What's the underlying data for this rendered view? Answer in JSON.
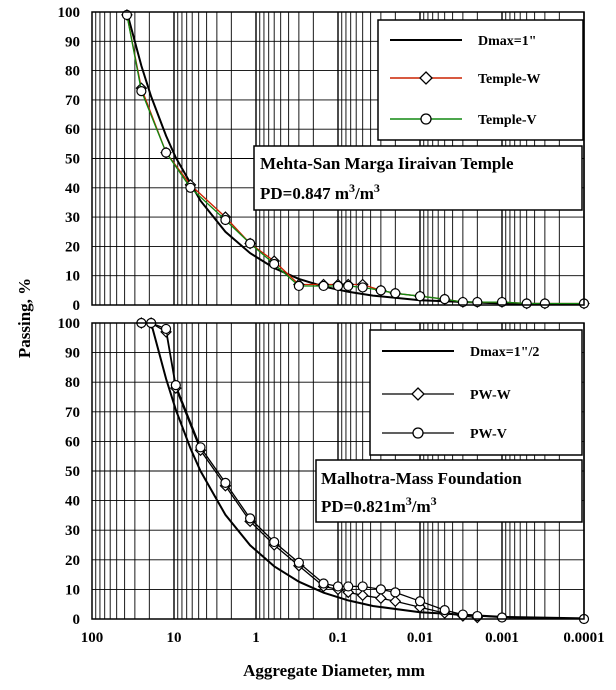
{
  "chart_data": [
    {
      "type": "line",
      "xscale": "log-reversed",
      "xlim": [
        100,
        0.0001
      ],
      "ylim": [
        0,
        100
      ],
      "grid": true,
      "yticks": [
        0,
        10,
        20,
        30,
        40,
        50,
        60,
        70,
        80,
        90,
        100
      ],
      "legend_position": "top-right",
      "legend": [
        "Dmax=1\"",
        "Temple-W",
        "Temple-V"
      ],
      "annotation": {
        "line1": "Mehta-San Marga Iiraivan Temple",
        "line2_prefix": "PD=0.847 m",
        "line2_sup1": "3",
        "line2_mid": "/m",
        "line2_sup2": "3"
      },
      "series": [
        {
          "name": "Dmax=1\"",
          "color": "#000000",
          "marker": "none",
          "x": [
            37.5,
            25,
            19,
            12.5,
            9.5,
            4.75,
            2.36,
            1.18,
            0.6,
            0.3,
            0.15,
            0.075,
            0.0375,
            0.01,
            0.001,
            0.0001
          ],
          "y": [
            100,
            81.6,
            71.2,
            57.7,
            50.3,
            35.6,
            25,
            17.7,
            12.6,
            8.9,
            6.3,
            4.5,
            3.2,
            1.6,
            0.5,
            0.2
          ]
        },
        {
          "name": "Temple-W",
          "color": "#cc2200",
          "marker": "diamond",
          "x": [
            37.5,
            25,
            12.5,
            6.3,
            2.36,
            1.18,
            0.6,
            0.3,
            0.15,
            0.1,
            0.075,
            0.05,
            0.03,
            0.02,
            0.01,
            0.005,
            0.003,
            0.002,
            0.001,
            0.0005,
            0.0003,
            0.0001
          ],
          "y": [
            99,
            74,
            52,
            41,
            30,
            21,
            15,
            7,
            7,
            7,
            7,
            7,
            5,
            4,
            3,
            2,
            1,
            1,
            1,
            0.5,
            0.5,
            0.5
          ]
        },
        {
          "name": "Temple-V",
          "color": "#118811",
          "marker": "circle",
          "x": [
            37.5,
            25,
            12.5,
            6.3,
            2.36,
            1.18,
            0.6,
            0.3,
            0.15,
            0.1,
            0.075,
            0.05,
            0.03,
            0.02,
            0.01,
            0.005,
            0.003,
            0.002,
            0.001,
            0.0005,
            0.0003,
            0.0001
          ],
          "y": [
            99,
            73,
            52,
            40,
            29,
            21,
            14,
            6.5,
            6.5,
            6.5,
            6.5,
            6,
            5,
            4,
            3,
            2,
            1,
            1,
            1,
            0.5,
            0.5,
            0.5
          ]
        }
      ]
    },
    {
      "type": "line",
      "xscale": "log-reversed",
      "xlim": [
        100,
        0.0001
      ],
      "ylim": [
        0,
        100
      ],
      "grid": true,
      "yticks": [
        0,
        10,
        20,
        30,
        40,
        50,
        60,
        70,
        80,
        90,
        100
      ],
      "xticks": [
        100,
        10,
        1,
        0.1,
        0.01,
        0.001,
        0.0001
      ],
      "xlabel": "Aggregate Diameter, mm",
      "ylabel": "Passing, %",
      "legend_position": "top-right",
      "legend": [
        "Dmax=1\"/2",
        "PW-W",
        "PW-V"
      ],
      "annotation": {
        "line1": "Malhotra-Mass Foundation",
        "line2_prefix": "PD=0.821m",
        "line2_sup1": "3",
        "line2_mid": "/m",
        "line2_sup2": "3"
      },
      "series": [
        {
          "name": "Dmax=1\"/2",
          "color": "#000000",
          "marker": "none",
          "x": [
            19,
            12.5,
            9.5,
            6.3,
            4.75,
            2.36,
            1.18,
            0.6,
            0.3,
            0.15,
            0.075,
            0.0375,
            0.01,
            0.001,
            0.0001
          ],
          "y": [
            100,
            81.1,
            70.7,
            57.6,
            50,
            35.2,
            24.9,
            17.8,
            12.6,
            8.9,
            6.3,
            4.4,
            2.3,
            0.7,
            0.2
          ]
        },
        {
          "name": "PW-W",
          "color": "#000000",
          "marker": "diamond",
          "x": [
            25,
            19,
            12.5,
            9.5,
            4.75,
            2.36,
            1.18,
            0.6,
            0.3,
            0.15,
            0.1,
            0.075,
            0.05,
            0.03,
            0.02,
            0.01,
            0.005,
            0.003,
            0.002
          ],
          "y": [
            100,
            100,
            97,
            78,
            57,
            45,
            33,
            25,
            18,
            11,
            10,
            9,
            8,
            7,
            6,
            4,
            2,
            1,
            0.5
          ]
        },
        {
          "name": "PW-V",
          "color": "#000000",
          "marker": "circle",
          "x": [
            25,
            19,
            12.5,
            9.5,
            4.75,
            2.36,
            1.18,
            0.6,
            0.3,
            0.15,
            0.1,
            0.075,
            0.05,
            0.03,
            0.02,
            0.01,
            0.005,
            0.003,
            0.002,
            0.001,
            0.0001
          ],
          "y": [
            100,
            100,
            98,
            79,
            58,
            46,
            34,
            26,
            19,
            12,
            11,
            11,
            11,
            10,
            9,
            6,
            3,
            1.5,
            1,
            0.5,
            0
          ]
        }
      ]
    }
  ]
}
